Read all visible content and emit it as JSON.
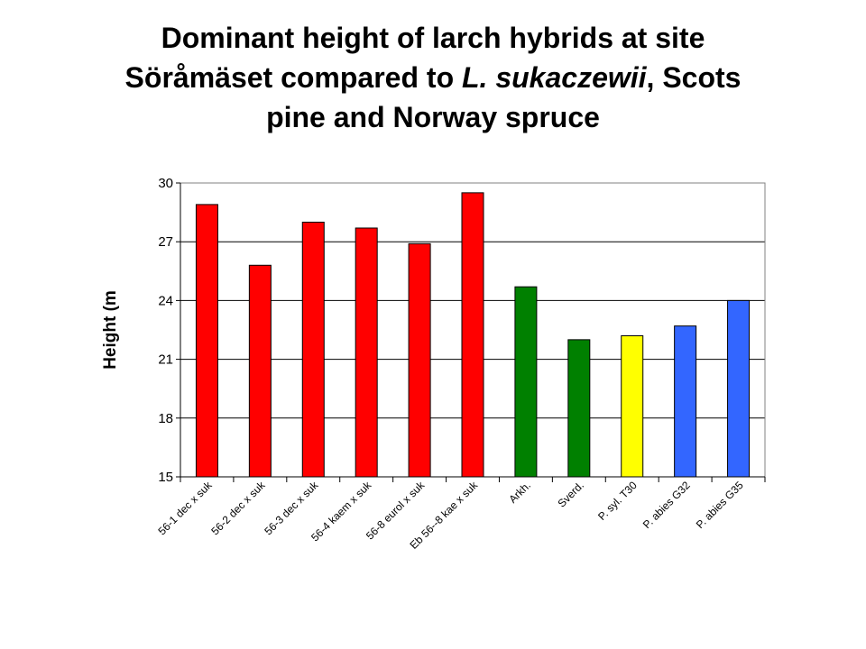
{
  "chart_data": {
    "type": "bar",
    "title": {
      "part1": "Dominant height of larch hybrids at site",
      "part2": "Söråmäset compared to ",
      "part3_italic": "L. sukaczewii",
      "part4": ", Scots",
      "part5": "pine and Norway spruce"
    },
    "xlabel": "",
    "ylabel": "Height (m",
    "ylim": [
      15,
      30
    ],
    "yticks": [
      15,
      18,
      21,
      24,
      27,
      30
    ],
    "grid": true,
    "categories": [
      "56-1 dec x suk",
      "56-2 dec x suk",
      "56-3 dec x suk",
      "56-4 kaem x suk",
      "56-8 eurol x suk",
      "Eb 56--8 kae x suk",
      "Arkh.",
      "Sverd.",
      "P. syl. T30",
      "P. abies G32",
      "P. abies G35"
    ],
    "values": [
      28.9,
      25.8,
      28.0,
      27.7,
      26.9,
      29.5,
      24.7,
      22.0,
      22.2,
      22.7,
      24.0
    ],
    "bar_colors": [
      "#ff0000",
      "#ff0000",
      "#ff0000",
      "#ff0000",
      "#ff0000",
      "#ff0000",
      "#008000",
      "#008000",
      "#ffff00",
      "#3366ff",
      "#3366ff"
    ]
  }
}
